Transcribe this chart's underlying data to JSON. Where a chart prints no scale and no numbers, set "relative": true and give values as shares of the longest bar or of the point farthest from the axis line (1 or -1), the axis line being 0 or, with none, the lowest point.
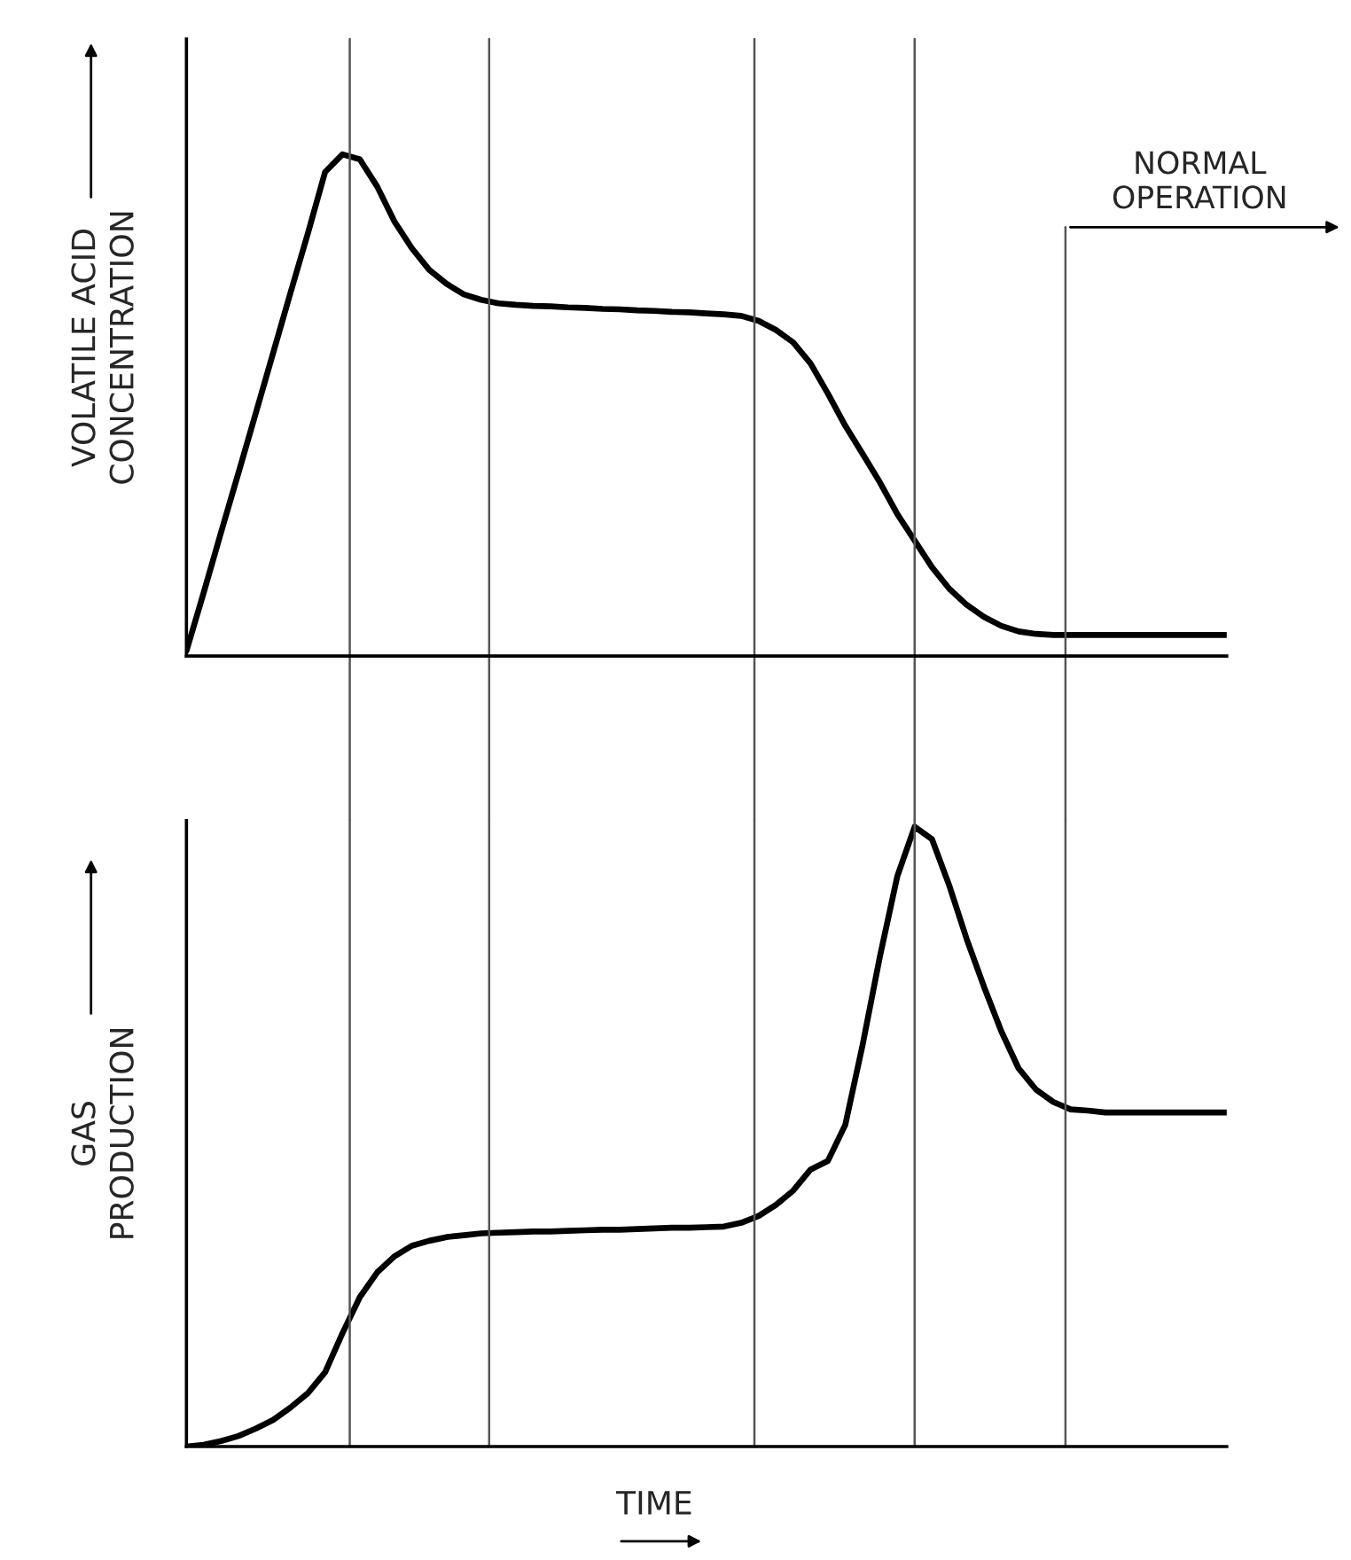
{
  "chart_data": [
    {
      "type": "line",
      "relative": true,
      "ylabel": "VOLATILE ACID\nCONCENTRATION",
      "grid": "x",
      "legend": false,
      "annotations": [
        "NORMAL\nOPERATION"
      ],
      "categories": [
        null,
        null,
        null,
        null,
        null,
        null,
        null,
        null,
        null,
        null,
        null,
        null,
        null,
        null,
        null,
        null,
        null,
        null,
        null,
        null,
        null,
        null,
        null,
        null,
        null,
        null,
        null,
        null,
        null,
        null,
        null,
        null,
        null,
        null,
        null,
        null,
        null,
        null,
        null,
        null,
        null,
        null,
        null,
        null,
        null,
        null,
        null,
        null,
        null,
        null,
        null,
        null,
        null,
        null,
        null,
        null,
        null,
        null,
        null,
        null,
        null
      ],
      "series": [
        {
          "color": "#000000",
          "values": [
            0.01,
            0.127,
            0.247,
            0.365,
            0.484,
            0.604,
            0.724,
            0.842,
            0.965,
            1.0,
            0.99,
            0.936,
            0.866,
            0.813,
            0.77,
            0.742,
            0.721,
            0.71,
            0.703,
            0.7,
            0.698,
            0.697,
            0.695,
            0.694,
            0.692,
            0.691,
            0.689,
            0.688,
            0.686,
            0.685,
            0.683,
            0.681,
            0.678,
            0.668,
            0.65,
            0.625,
            0.583,
            0.523,
            0.459,
            0.403,
            0.346,
            0.283,
            0.23,
            0.177,
            0.134,
            0.102,
            0.078,
            0.06,
            0.049,
            0.044,
            0.042,
            0.042,
            0.042,
            0.042,
            0.042,
            0.042,
            0.042,
            0.042,
            0.042,
            0.042,
            0.042
          ]
        }
      ]
    },
    {
      "type": "line",
      "relative": true,
      "ylabel": "GAS\nPRODUCTION",
      "xlabel": "TIME",
      "grid": "x",
      "legend": false,
      "categories": [
        null,
        null,
        null,
        null,
        null,
        null,
        null,
        null,
        null,
        null,
        null,
        null,
        null,
        null,
        null,
        null,
        null,
        null,
        null,
        null,
        null,
        null,
        null,
        null,
        null,
        null,
        null,
        null,
        null,
        null,
        null,
        null,
        null,
        null,
        null,
        null,
        null,
        null,
        null,
        null,
        null,
        null,
        null,
        null,
        null,
        null,
        null,
        null,
        null,
        null,
        null,
        null,
        null,
        null,
        null,
        null,
        null,
        null,
        null,
        null,
        null
      ],
      "series": [
        {
          "color": "#000000",
          "values": [
            0,
            0.003,
            0.009,
            0.017,
            0.029,
            0.043,
            0.063,
            0.086,
            0.12,
            0.183,
            0.241,
            0.281,
            0.307,
            0.324,
            0.332,
            0.338,
            0.341,
            0.344,
            0.345,
            0.346,
            0.347,
            0.347,
            0.348,
            0.349,
            0.35,
            0.35,
            0.351,
            0.352,
            0.353,
            0.353,
            0.354,
            0.355,
            0.361,
            0.372,
            0.39,
            0.413,
            0.447,
            0.461,
            0.519,
            0.648,
            0.791,
            0.92,
            1.0,
            0.98,
            0.905,
            0.819,
            0.742,
            0.67,
            0.61,
            0.576,
            0.556,
            0.544,
            0.542,
            0.539,
            0.539,
            0.539,
            0.539,
            0.539,
            0.539,
            0.539,
            0.539
          ]
        }
      ]
    }
  ]
}
